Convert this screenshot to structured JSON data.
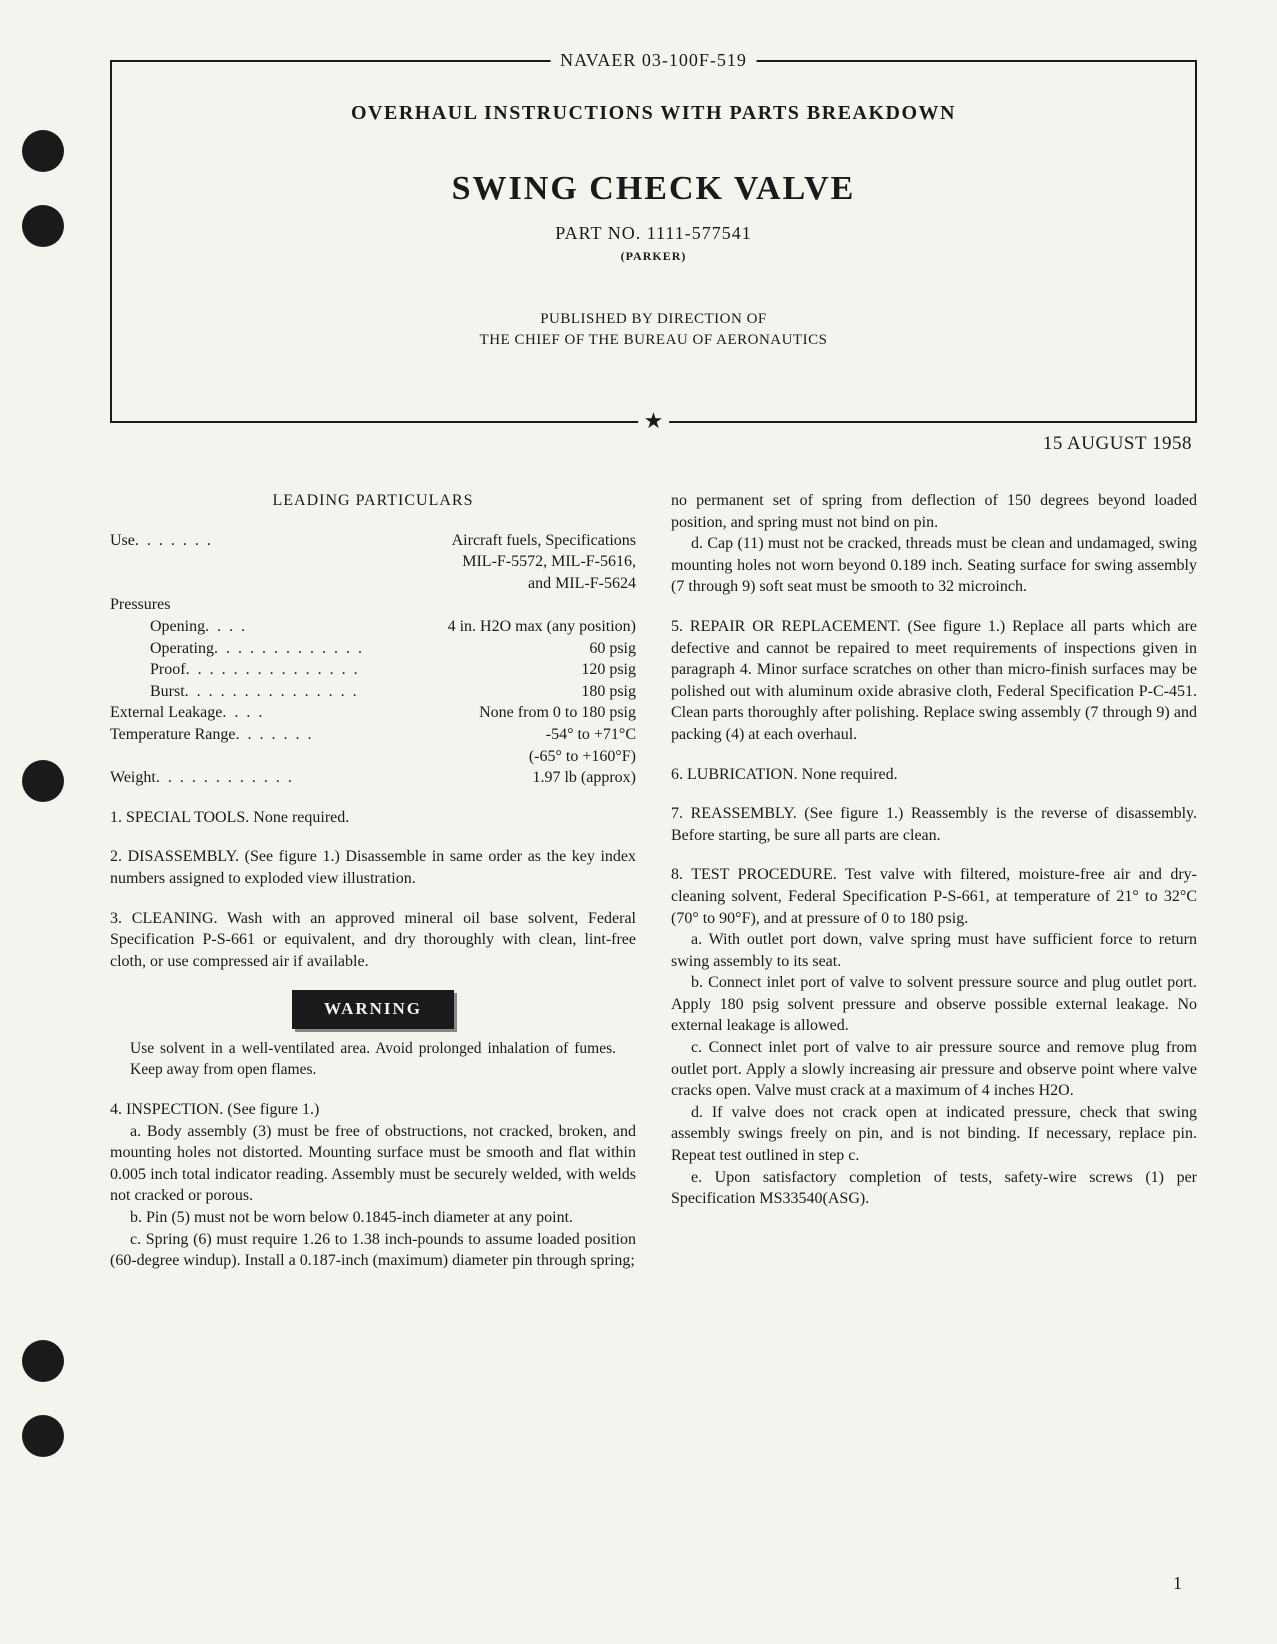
{
  "doc_id": "NAVAER 03-100F-519",
  "title_line": "OVERHAUL INSTRUCTIONS WITH PARTS BREAKDOWN",
  "main_title": "SWING CHECK VALVE",
  "part_no": "PART NO. 1111-577541",
  "maker": "(PARKER)",
  "publisher_l1": "PUBLISHED BY DIRECTION OF",
  "publisher_l2": "THE CHIEF OF THE BUREAU OF AERONAUTICS",
  "date": "15 AUGUST 1958",
  "particulars_heading": "LEADING PARTICULARS",
  "specs": {
    "use_label": "Use",
    "use_value": "Aircraft fuels, Specifications",
    "use_l2": "MIL-F-5572, MIL-F-5616,",
    "use_l3": "and MIL-F-5624",
    "pressures_label": "Pressures",
    "opening_label": "Opening",
    "opening_value": "4 in. H2O max (any position)",
    "operating_label": "Operating",
    "operating_value": "60 psig",
    "proof_label": "Proof",
    "proof_value": "120 psig",
    "burst_label": "Burst",
    "burst_value": "180 psig",
    "ext_leak_label": "External Leakage",
    "ext_leak_value": "None from 0 to 180 psig",
    "temp_label": "Temperature Range",
    "temp_value": "-54° to +71°C",
    "temp_l2": "(-65° to +160°F)",
    "weight_label": "Weight",
    "weight_value": "1.97 lb (approx)"
  },
  "p1": "1. SPECIAL TOOLS. None required.",
  "p2": "2. DISASSEMBLY. (See figure 1.) Disassemble in same order as the key index numbers assigned to exploded view illustration.",
  "p3": "3. CLEANING. Wash with an approved mineral oil base solvent, Federal Specification P-S-661 or equivalent, and dry thoroughly with clean, lint-free cloth, or use compressed air if available.",
  "warning_label": "WARNING",
  "warning_text": "Use solvent in a well-ventilated area. Avoid prolonged inhalation of fumes. Keep away from open flames.",
  "p4": "4. INSPECTION. (See figure 1.)",
  "p4a": "a. Body assembly (3) must be free of obstructions, not cracked, broken, and mounting holes not distorted. Mounting surface must be smooth and flat within 0.005 inch total indicator reading. Assembly must be securely welded, with welds not cracked or porous.",
  "p4b": "b. Pin (5) must not be worn below 0.1845-inch diameter at any point.",
  "p4c": "c. Spring (6) must require 1.26 to 1.38 inch-pounds to assume loaded position (60-degree windup). Install a 0.187-inch (maximum) diameter pin through spring;",
  "col2_top": "no permanent set of spring from deflection of 150 degrees beyond loaded position, and spring must not bind on pin.",
  "p4d": "d. Cap (11) must not be cracked, threads must be clean and undamaged, swing mounting holes not worn beyond 0.189 inch. Seating surface for swing assembly (7 through 9) soft seat must be smooth to 32 microinch.",
  "p5": "5. REPAIR OR REPLACEMENT. (See figure 1.) Replace all parts which are defective and cannot be repaired to meet requirements of inspections given in paragraph 4. Minor surface scratches on other than micro-finish surfaces may be polished out with aluminum oxide abrasive cloth, Federal Specification P-C-451. Clean parts thoroughly after polishing. Replace swing assembly (7 through 9) and packing (4) at each overhaul.",
  "p6": "6. LUBRICATION. None required.",
  "p7": "7. REASSEMBLY. (See figure 1.) Reassembly is the reverse of disassembly. Before starting, be sure all parts are clean.",
  "p8": "8. TEST PROCEDURE. Test valve with filtered, moisture-free air and dry-cleaning solvent, Federal Specification P-S-661, at temperature of 21° to 32°C (70° to 90°F), and at pressure of 0 to 180 psig.",
  "p8a": "a. With outlet port down, valve spring must have sufficient force to return swing assembly to its seat.",
  "p8b": "b. Connect inlet port of valve to solvent pressure source and plug outlet port. Apply 180 psig solvent pressure and observe possible external leakage. No external leakage is allowed.",
  "p8c": "c. Connect inlet port of valve to air pressure source and remove plug from outlet port. Apply a slowly increasing air pressure and observe point where valve cracks open. Valve must crack at a maximum of 4 inches H2O.",
  "p8d": "d. If valve does not crack open at indicated pressure, check that swing assembly swings freely on pin, and is not binding. If necessary, replace pin. Repeat test outlined in step c.",
  "p8e": "e. Upon satisfactory completion of tests, safety-wire screws (1) per Specification MS33540(ASG).",
  "page_num": "1"
}
